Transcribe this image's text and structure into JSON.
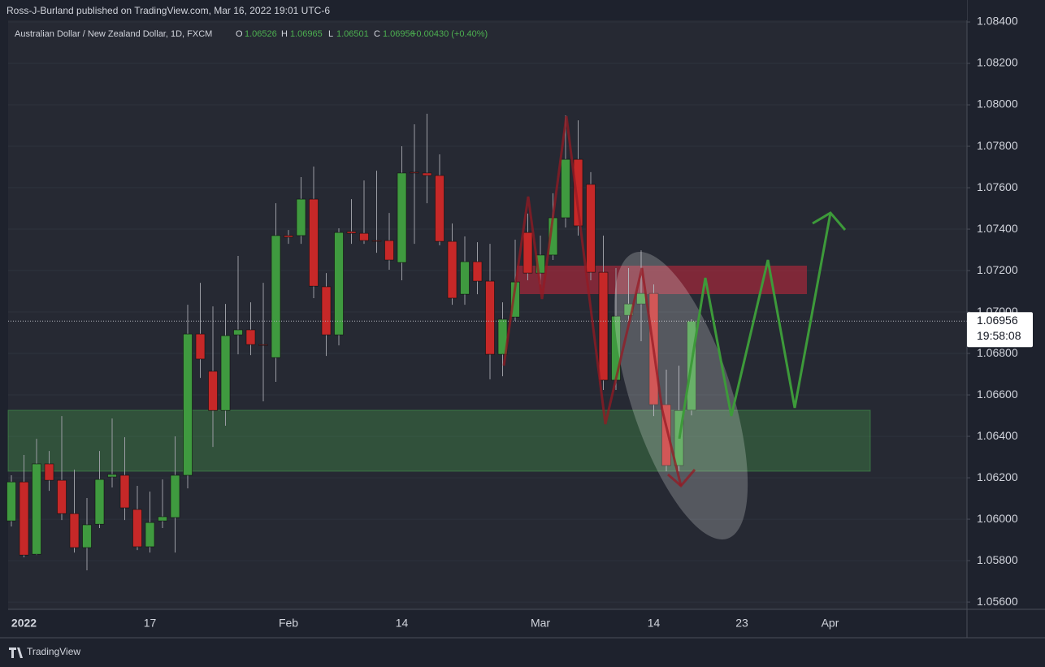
{
  "header": {
    "byline": "Ross-J-Burland published on TradingView.com, Mar 16, 2022 19:01 UTC-6"
  },
  "footer": {
    "brand": "TradingView"
  },
  "chart_data": {
    "type": "candlestick",
    "title": "Australian Dollar / New Zealand Dollar, 1D, FXCM",
    "legend_labels": [
      "O",
      "H",
      "L",
      "C"
    ],
    "change_label": "+0.00430 (+0.40%)",
    "countdown": "19:58:08",
    "up_color": "#3f9a3f",
    "down_color": "#c62828",
    "categories": [
      null,
      "2022",
      null,
      null,
      null,
      null,
      null,
      null,
      null,
      null,
      null,
      "17",
      null,
      null,
      null,
      null,
      null,
      null,
      null,
      null,
      null,
      null,
      "Feb",
      null,
      null,
      null,
      null,
      null,
      null,
      null,
      null,
      "14",
      null,
      null,
      null,
      null,
      null,
      null,
      null,
      null,
      null,
      null,
      "Mar",
      null,
      null,
      null,
      null,
      null,
      null,
      null,
      null,
      "14",
      null,
      null,
      null,
      null,
      null,
      null,
      "23",
      null,
      null,
      null,
      null,
      null,
      null,
      "Apr",
      null,
      null,
      null,
      null,
      null,
      null,
      null,
      null,
      null,
      null
    ],
    "open": [
      1.05992,
      1.0618,
      1.05831,
      1.06267,
      1.06188,
      1.06027,
      1.05863,
      1.05976,
      1.06204,
      1.06212,
      1.06047,
      1.05867,
      1.05992,
      1.06008,
      1.06212,
      1.06894,
      1.06714,
      1.06525,
      1.0689,
      1.06914,
      1.06843,
      1.0678,
      1.07369,
      1.07369,
      1.07545,
      1.07122,
      1.0689,
      1.07388,
      1.0738,
      1.07345,
      1.07345,
      1.07239,
      1.07675,
      1.07671,
      1.07659,
      1.07341,
      1.07086,
      1.07243,
      1.07149,
      1.06796,
      1.06976,
      1.07384,
      1.07188,
      1.07275,
      1.07455,
      1.07737,
      1.07616,
      1.07192,
      1.06671,
      1.06984,
      1.07039,
      1.0709,
      1.06553,
      1.06259,
      1.06526,
      null,
      null,
      null,
      null,
      null,
      null,
      null,
      null,
      null,
      null,
      null,
      null,
      null,
      null,
      null,
      null,
      null,
      null,
      null,
      null,
      null
    ],
    "high": [
      1.06212,
      1.0631,
      1.06388,
      1.06329,
      1.06498,
      1.06239,
      1.06102,
      1.06329,
      1.06486,
      1.06396,
      1.06161,
      1.06133,
      1.06192,
      1.064,
      1.07035,
      1.07141,
      1.07027,
      1.07039,
      1.07271,
      1.07047,
      1.07141,
      1.07525,
      1.07396,
      1.07651,
      1.07702,
      1.07188,
      1.07404,
      1.07545,
      1.07635,
      1.07682,
      1.07478,
      1.078,
      1.07906,
      1.07957,
      1.07761,
      1.07427,
      1.07365,
      1.07337,
      1.07329,
      1.07047,
      1.07349,
      1.07475,
      1.07369,
      1.07573,
      1.07949,
      1.07925,
      1.07675,
      1.07369,
      1.07212,
      1.07212,
      1.07298,
      1.07133,
      1.06722,
      1.06741,
      1.06965,
      null,
      null,
      null,
      null,
      null,
      null,
      null,
      null,
      null,
      null,
      null,
      null,
      null,
      null,
      null,
      null,
      null,
      null,
      null,
      null,
      null
    ],
    "low": [
      1.05965,
      1.05816,
      1.05827,
      1.06137,
      1.05996,
      1.05839,
      1.05753,
      1.05957,
      1.06153,
      1.05996,
      1.05851,
      1.05839,
      1.05957,
      1.05839,
      1.06149,
      1.06682,
      1.06349,
      1.06451,
      1.06796,
      1.06792,
      1.06569,
      1.06663,
      1.07329,
      1.07329,
      1.07067,
      1.06788,
      1.06839,
      1.07329,
      1.07329,
      1.07286,
      1.07204,
      1.07153,
      1.07329,
      1.07525,
      1.07322,
      1.07035,
      1.07035,
      1.07086,
      1.06675,
      1.0669,
      1.06957,
      1.07153,
      1.07133,
      1.07251,
      1.07408,
      1.07369,
      1.07153,
      1.06624,
      1.06624,
      1.06957,
      1.06859,
      1.06498,
      1.06231,
      1.06231,
      1.06501,
      null,
      null,
      null,
      null,
      null,
      null,
      null,
      null,
      null,
      null,
      null,
      null,
      null,
      null,
      null,
      null,
      null,
      null,
      null,
      null,
      null
    ],
    "close": [
      1.0618,
      1.05827,
      1.06267,
      1.06188,
      1.06027,
      1.05863,
      1.05973,
      1.06192,
      1.06216,
      1.06055,
      1.05867,
      1.05984,
      1.06012,
      1.06212,
      1.06894,
      1.06773,
      1.06525,
      1.06886,
      1.06914,
      1.06843,
      1.06839,
      1.07369,
      1.07361,
      1.07545,
      1.07125,
      1.0689,
      1.07384,
      1.0738,
      1.07345,
      1.07341,
      1.07251,
      1.07671,
      1.07671,
      1.07659,
      1.07341,
      1.07067,
      1.07243,
      1.07149,
      1.06796,
      1.06965,
      1.07145,
      1.07188,
      1.07275,
      1.07455,
      1.07737,
      1.07416,
      1.07192,
      1.06671,
      1.0698,
      1.07039,
      1.0709,
      1.06553,
      1.06259,
      1.06525,
      1.06956,
      null,
      null,
      null,
      null,
      null,
      null,
      null,
      null,
      null,
      null,
      null,
      null,
      null,
      null,
      null,
      null,
      null,
      null,
      null,
      null,
      null
    ],
    "ylim": [
      1.05565,
      1.08408
    ],
    "yticks": [
      {
        "value": 1.084,
        "label": "1.08400"
      },
      {
        "value": 1.082,
        "label": "1.08200"
      },
      {
        "value": 1.08,
        "label": "1.08000"
      },
      {
        "value": 1.078,
        "label": "1.07800"
      },
      {
        "value": 1.076,
        "label": "1.07600"
      },
      {
        "value": 1.074,
        "label": "1.07400"
      },
      {
        "value": 1.072,
        "label": "1.07200"
      },
      {
        "value": 1.07,
        "label": "1.07000"
      },
      {
        "value": 1.068,
        "label": "1.06800"
      },
      {
        "value": 1.066,
        "label": "1.06600"
      },
      {
        "value": 1.064,
        "label": "1.06400"
      },
      {
        "value": 1.062,
        "label": "1.06200"
      },
      {
        "value": 1.06,
        "label": "1.06000"
      },
      {
        "value": 1.058,
        "label": "1.05800"
      },
      {
        "value": 1.056,
        "label": "1.05600"
      }
    ],
    "grid": true
  }
}
